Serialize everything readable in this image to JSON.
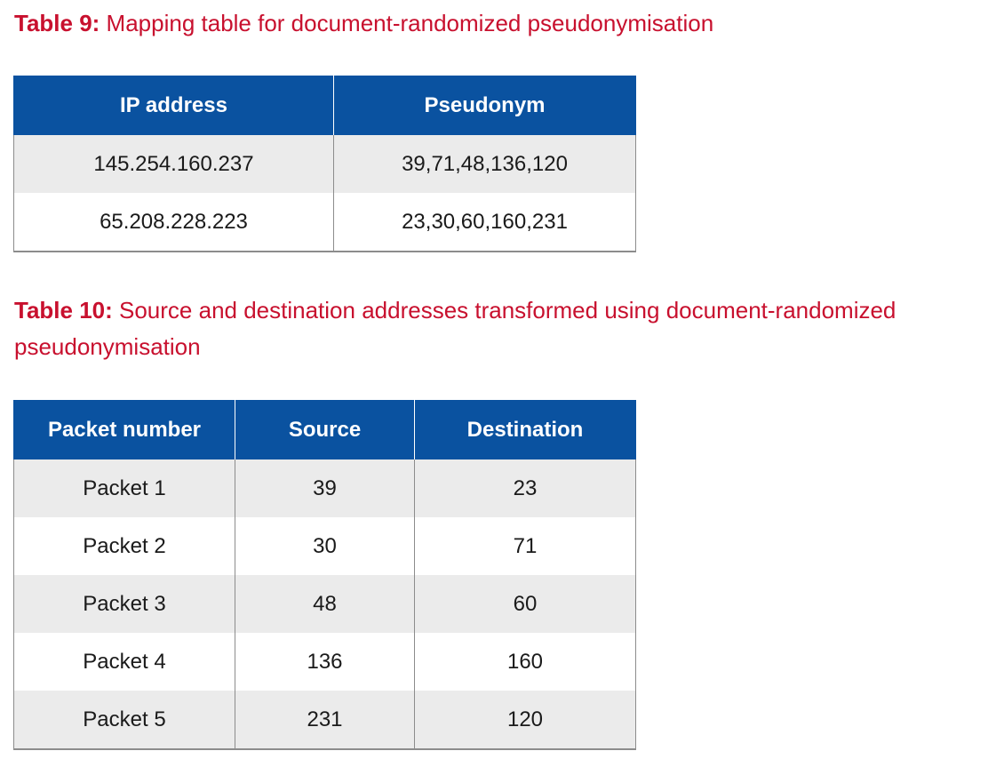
{
  "table9": {
    "caption_label": "Table 9:",
    "caption_text": " Mapping table for document-randomized pseudonymisation",
    "headers": [
      "IP address",
      "Pseudonym"
    ],
    "rows": [
      [
        "145.254.160.237",
        "39,71,48,136,120"
      ],
      [
        "65.208.228.223",
        "23,30,60,160,231"
      ]
    ]
  },
  "table10": {
    "caption_label": "Table 10:",
    "caption_text": " Source and destination addresses transformed using document-randomized pseudonymisation",
    "headers": [
      "Packet number",
      "Source",
      "Destination"
    ],
    "rows": [
      [
        "Packet 1",
        "39",
        "23"
      ],
      [
        "Packet 2",
        "30",
        "71"
      ],
      [
        "Packet 3",
        "48",
        "60"
      ],
      [
        "Packet 4",
        "136",
        "160"
      ],
      [
        "Packet 5",
        "231",
        "120"
      ]
    ]
  },
  "colors": {
    "caption": "#c8102e",
    "header_bg": "#0a52a0",
    "row_alt_bg": "#ebebeb",
    "border": "#8c8c8c"
  }
}
